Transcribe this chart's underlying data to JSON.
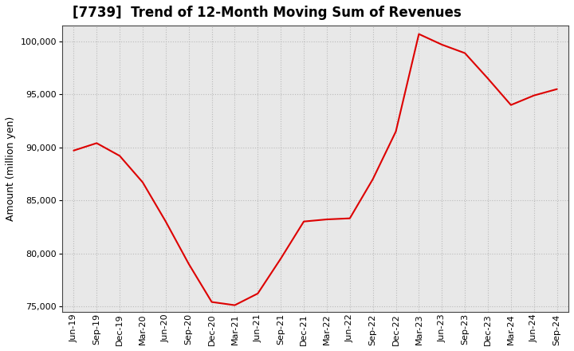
{
  "title": "[7739]  Trend of 12-Month Moving Sum of Revenues",
  "ylabel": "Amount (million yen)",
  "line_color": "#DD0000",
  "background_color": "#FFFFFF",
  "plot_bg_color": "#E8E8E8",
  "grid_color": "#BBBBBB",
  "x_labels": [
    "Jun-19",
    "Sep-19",
    "Dec-19",
    "Mar-20",
    "Jun-20",
    "Sep-20",
    "Dec-20",
    "Mar-21",
    "Jun-21",
    "Sep-21",
    "Dec-21",
    "Mar-22",
    "Jun-22",
    "Sep-22",
    "Dec-22",
    "Mar-23",
    "Jun-23",
    "Sep-23",
    "Dec-23",
    "Mar-24",
    "Jun-24",
    "Sep-24"
  ],
  "y_values": [
    89700,
    90400,
    89200,
    86700,
    83000,
    79000,
    75400,
    75100,
    76200,
    79500,
    83000,
    83200,
    83300,
    87000,
    91500,
    100700,
    99700,
    98900,
    96500,
    94000,
    94900,
    95500
  ],
  "ylim": [
    74500,
    101500
  ],
  "yticks": [
    75000,
    80000,
    85000,
    90000,
    95000,
    100000
  ],
  "title_fontsize": 12,
  "ylabel_fontsize": 9,
  "tick_fontsize": 8
}
